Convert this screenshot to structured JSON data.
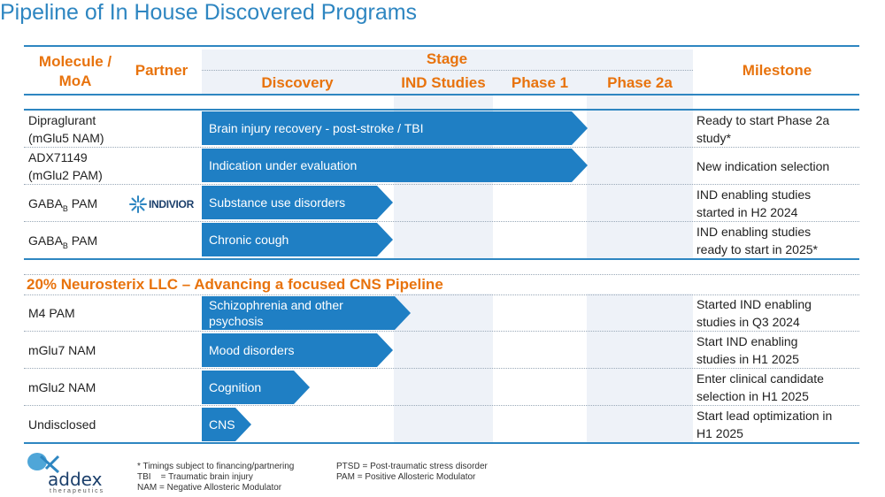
{
  "title": "Pipeline of In House Discovered Programs",
  "header": {
    "molecule": "Molecule /",
    "moa": "MoA",
    "partner": "Partner",
    "stage": "Stage",
    "discovery": "Discovery",
    "ind": "IND Studies",
    "phase1": "Phase 1",
    "phase2a": "Phase 2a",
    "milestone": "Milestone"
  },
  "rows": [
    {
      "molecule": [
        "Dipraglurant",
        "(mGlu5 NAM)"
      ],
      "indication": "Brain injury recovery - post-stroke / TBI",
      "milestone": [
        "Ready to start Phase 2a",
        "study*"
      ]
    },
    {
      "molecule": [
        "ADX71149",
        "(mGlu2 PAM)"
      ],
      "indication": "Indication under evaluation",
      "milestone": [
        "New indication selection"
      ]
    },
    {
      "molecule_prefix": "GABA",
      "molecule_sub": "B",
      "molecule_suffix": " PAM",
      "partner": "INDIVIOR",
      "indication": "Substance use disorders",
      "milestone": [
        "IND enabling studies",
        "started in H2 2024"
      ]
    },
    {
      "molecule_prefix": "GABA",
      "molecule_sub": "B",
      "molecule_suffix": " PAM",
      "indication": "Chronic cough",
      "milestone": [
        "IND enabling studies",
        "ready to start in 2025*"
      ]
    }
  ],
  "section2_title": "20% Neurosterix LLC – Advancing a focused CNS Pipeline",
  "rows2": [
    {
      "molecule": "M4 PAM",
      "indication": [
        "Schizophrenia and other",
        "psychosis"
      ],
      "milestone": [
        "Started IND enabling",
        "studies in Q3 2024"
      ]
    },
    {
      "molecule": "mGlu7 NAM",
      "indication": [
        "Mood disorders"
      ],
      "milestone": [
        "Start IND enabling",
        "studies in H1 2025"
      ]
    },
    {
      "molecule": "mGlu2 NAM",
      "indication": [
        "Cognition"
      ],
      "milestone": [
        "Enter clinical candidate",
        "selection in H1 2025"
      ]
    },
    {
      "molecule": "Undisclosed",
      "indication": [
        "CNS"
      ],
      "milestone": [
        "Start lead optimization in",
        "H1 2025"
      ]
    }
  ],
  "footer": {
    "note1": "* Timings subject to financing/partnering",
    "note2": "TBI    = Traumatic brain injury",
    "note3": "NAM = Negative Allosteric Modulator",
    "note4": "PTSD = Post-traumatic stress disorder",
    "note5": "PAM = Positive Allosteric Modulator"
  },
  "logo": {
    "name": "addex",
    "sub": "therapeutics"
  },
  "colors": {
    "accent": "#2e86c1",
    "orange": "#e8730d",
    "bar": "#1f7fc4"
  }
}
